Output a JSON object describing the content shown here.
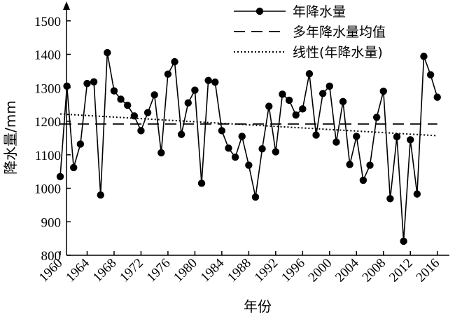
{
  "chart_data": {
    "type": "line",
    "xlabel": "年份",
    "ylabel": "降水量/mm",
    "xlim": [
      1960,
      2017
    ],
    "ylim": [
      800,
      1540
    ],
    "x_ticks": [
      1960,
      1964,
      1968,
      1972,
      1976,
      1980,
      1984,
      1988,
      1992,
      1996,
      2000,
      2004,
      2008,
      2012,
      2016
    ],
    "x_tick_labels": [
      "1960",
      "1964",
      "1968",
      "1972",
      "1976",
      "1980",
      "1984",
      "1988",
      "1992",
      "1996",
      "2000",
      "2004",
      "2008",
      "2012",
      "2016"
    ],
    "y_ticks": [
      800,
      900,
      1000,
      1100,
      1200,
      1300,
      1400,
      1500
    ],
    "y_tick_labels": [
      "800",
      "900",
      "1000",
      "1100",
      "1200",
      "1300",
      "1400",
      "1500"
    ],
    "grid": false,
    "legend_position": "top-right",
    "series": [
      {
        "name": "年降水量",
        "style": "solid-marker",
        "x": [
          1960,
          1961,
          1962,
          1963,
          1964,
          1965,
          1966,
          1967,
          1968,
          1969,
          1970,
          1971,
          1972,
          1973,
          1974,
          1975,
          1976,
          1977,
          1978,
          1979,
          1980,
          1981,
          1982,
          1983,
          1984,
          1985,
          1986,
          1987,
          1988,
          1989,
          1990,
          1991,
          1992,
          1993,
          1994,
          1995,
          1996,
          1997,
          1998,
          1999,
          2000,
          2001,
          2002,
          2003,
          2004,
          2005,
          2006,
          2007,
          2008,
          2009,
          2010,
          2011,
          2012,
          2013,
          2014,
          2015,
          2016
        ],
        "values": [
          1035,
          1305,
          1062,
          1132,
          1313,
          1318,
          980,
          1405,
          1291,
          1266,
          1248,
          1216,
          1172,
          1226,
          1279,
          1106,
          1341,
          1378,
          1161,
          1255,
          1293,
          1015,
          1322,
          1317,
          1172,
          1120,
          1093,
          1155,
          1069,
          974,
          1118,
          1245,
          1109,
          1281,
          1263,
          1219,
          1237,
          1342,
          1159,
          1283,
          1305,
          1138,
          1259,
          1071,
          1155,
          1024,
          1069,
          1212,
          1290,
          969,
          1154,
          842,
          1145,
          983,
          1394,
          1339,
          1272
        ]
      },
      {
        "name": "多年降水量均值",
        "style": "dashed",
        "x": [
          1960,
          2016
        ],
        "values": [
          1192,
          1192
        ]
      },
      {
        "name": "线性(年降水量)",
        "style": "dotted",
        "x": [
          1960,
          2016
        ],
        "values": [
          1222,
          1157
        ]
      }
    ]
  }
}
